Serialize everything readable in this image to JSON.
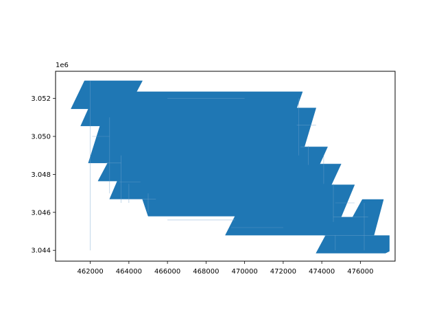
{
  "chart_data": {
    "type": "area",
    "title": "",
    "xlabel": "",
    "ylabel": "",
    "y_offset_label": "1e6",
    "xlim": [
      460200,
      477800
    ],
    "ylim": [
      3.04343,
      3.05343
    ],
    "x_ticks": [
      462000,
      464000,
      466000,
      468000,
      470000,
      472000,
      474000,
      476000
    ],
    "x_tick_labels": [
      "462000",
      "464000",
      "466000",
      "468000",
      "470000",
      "472000",
      "474000",
      "476000"
    ],
    "y_ticks": [
      3.044,
      3.046,
      3.048,
      3.05,
      3.052
    ],
    "y_tick_labels": [
      "3.044",
      "3.046",
      "3.048",
      "3.050",
      "3.052"
    ],
    "grid": false,
    "fill_color": "#1f77b4",
    "grid_line_color": "#6ea2cc",
    "polygon": [
      [
        461700,
        3.05293
      ],
      [
        464700,
        3.05293
      ],
      [
        464400,
        3.05235
      ],
      [
        473000,
        3.05235
      ],
      [
        472700,
        3.0515
      ],
      [
        473700,
        3.0515
      ],
      [
        473100,
        3.04945
      ],
      [
        474300,
        3.04945
      ],
      [
        473900,
        3.04855
      ],
      [
        475000,
        3.04855
      ],
      [
        474500,
        3.04745
      ],
      [
        475700,
        3.04745
      ],
      [
        475000,
        3.04575
      ],
      [
        475600,
        3.04575
      ],
      [
        476100,
        3.04668
      ],
      [
        477200,
        3.04668
      ],
      [
        476700,
        3.04478
      ],
      [
        477500,
        3.04478
      ],
      [
        477500,
        3.04395
      ],
      [
        477300,
        3.04385
      ],
      [
        473700,
        3.04385
      ],
      [
        474200,
        3.0448
      ],
      [
        469000,
        3.0448
      ],
      [
        469500,
        3.0458
      ],
      [
        465000,
        3.0458
      ],
      [
        464700,
        3.0467
      ],
      [
        463000,
        3.0467
      ],
      [
        463400,
        3.04765
      ],
      [
        462400,
        3.04765
      ],
      [
        462900,
        3.0486
      ],
      [
        461900,
        3.0486
      ],
      [
        462500,
        3.05055
      ],
      [
        461500,
        3.05055
      ],
      [
        461900,
        3.05145
      ],
      [
        461000,
        3.05145
      ]
    ],
    "cell_lines": [
      [
        [
          462000,
          3.044
        ],
        [
          462000,
          3.05293
        ]
      ],
      [
        [
          463000,
          3.047
        ],
        [
          463000,
          3.051
        ]
      ],
      [
        [
          463600,
          3.0465
        ],
        [
          463600,
          3.049
        ]
      ],
      [
        [
          464000,
          3.0465
        ],
        [
          464000,
          3.0475
        ]
      ],
      [
        [
          465000,
          3.046
        ],
        [
          465000,
          3.047
        ]
      ],
      [
        [
          472800,
          3.049
        ],
        [
          472800,
          3.052
        ]
      ],
      [
        [
          473300,
          3.0485
        ],
        [
          473300,
          3.0495
        ]
      ],
      [
        [
          474100,
          3.0475
        ],
        [
          474100,
          3.049
        ]
      ],
      [
        [
          474600,
          3.0455
        ],
        [
          474600,
          3.0475
        ]
      ],
      [
        [
          474700,
          3.044
        ],
        [
          474700,
          3.0448
        ]
      ],
      [
        [
          476200,
          3.044
        ],
        [
          476200,
          3.0465
        ]
      ],
      [
        [
          463000,
          3.05
        ],
        [
          462100,
          3.05
        ]
      ],
      [
        [
          463600,
          3.0486
        ],
        [
          462800,
          3.0486
        ]
      ],
      [
        [
          464600,
          3.0476
        ],
        [
          463500,
          3.0476
        ]
      ],
      [
        [
          465400,
          3.0467
        ],
        [
          463400,
          3.0467
        ]
      ],
      [
        [
          473700,
          3.0506
        ],
        [
          472700,
          3.0506
        ]
      ],
      [
        [
          474300,
          3.04945
        ],
        [
          472900,
          3.04945
        ]
      ],
      [
        [
          475000,
          3.04855
        ],
        [
          473900,
          3.04855
        ]
      ],
      [
        [
          475700,
          3.0465
        ],
        [
          474700,
          3.0465
        ]
      ],
      [
        [
          476400,
          3.04575
        ],
        [
          474600,
          3.04575
        ]
      ],
      [
        [
          477000,
          3.04478
        ],
        [
          474100,
          3.04478
        ]
      ],
      [
        [
          469500,
          3.0456
        ],
        [
          466000,
          3.0456
        ]
      ],
      [
        [
          472000,
          3.0452
        ],
        [
          469300,
          3.0452
        ]
      ],
      [
        [
          466000,
          3.052
        ],
        [
          470000,
          3.052
        ]
      ]
    ]
  }
}
